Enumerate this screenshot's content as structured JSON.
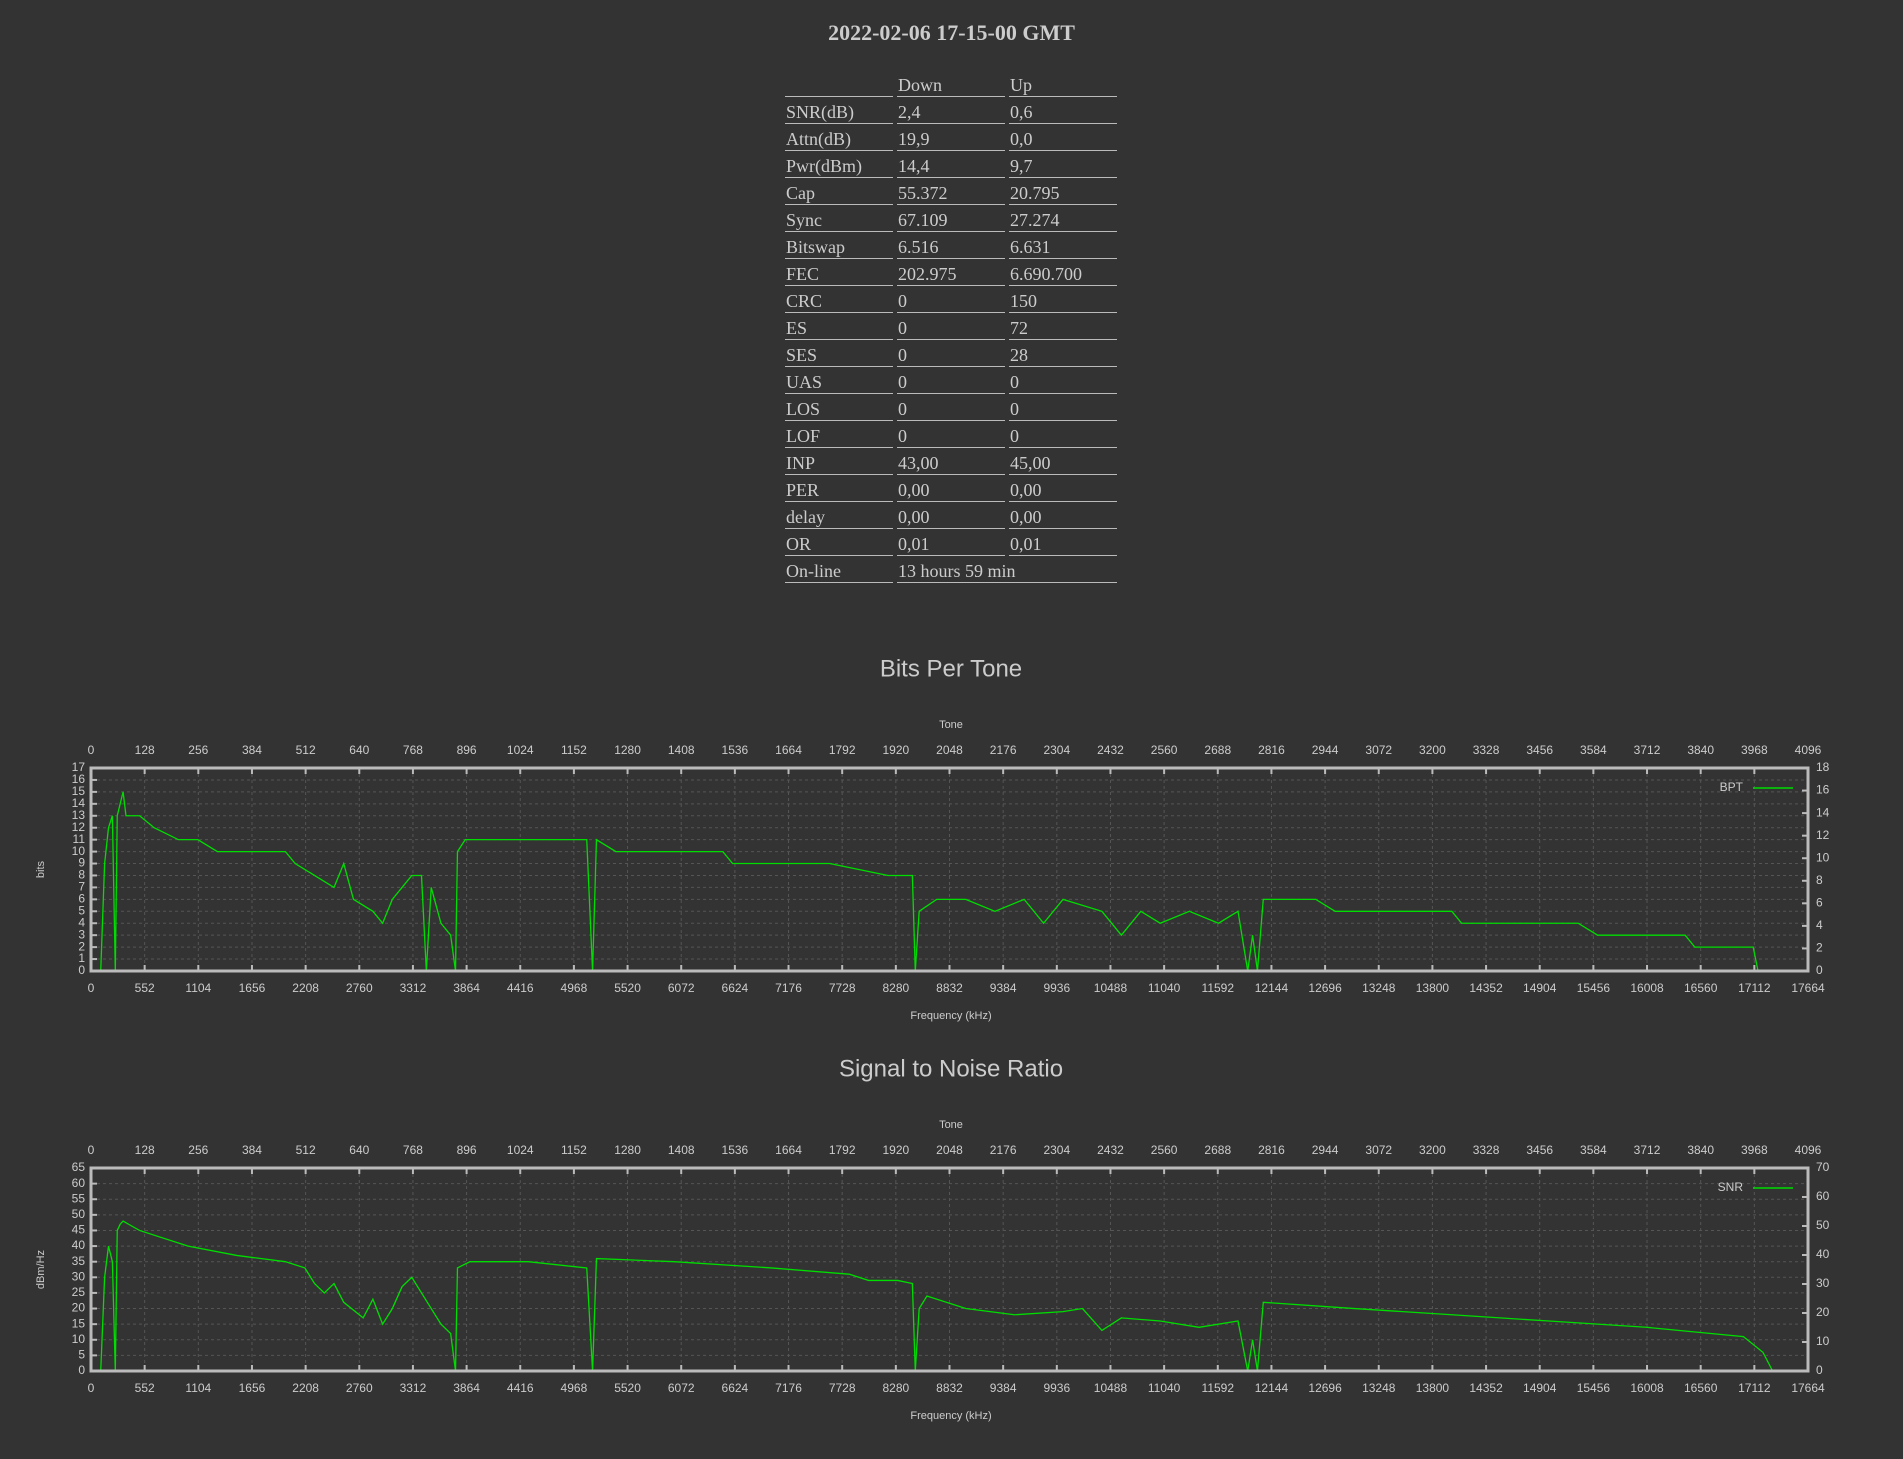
{
  "header": {
    "title": "2022-02-06 17-15-00 GMT"
  },
  "table": {
    "columns": [
      "Down",
      "Up"
    ],
    "rows": [
      [
        "SNR(dB)",
        "2,4",
        "0,6"
      ],
      [
        "Attn(dB)",
        "19,9",
        "0,0"
      ],
      [
        "Pwr(dBm)",
        "14,4",
        "9,7"
      ],
      [
        "Cap",
        "55.372",
        "20.795"
      ],
      [
        "Sync",
        "67.109",
        "27.274"
      ],
      [
        "Bitswap",
        "6.516",
        "6.631"
      ],
      [
        "FEC",
        "202.975",
        "6.690.700"
      ],
      [
        "CRC",
        "0",
        "150"
      ],
      [
        "ES",
        "0",
        "72"
      ],
      [
        "SES",
        "0",
        "28"
      ],
      [
        "UAS",
        "0",
        "0"
      ],
      [
        "LOS",
        "0",
        "0"
      ],
      [
        "LOF",
        "0",
        "0"
      ],
      [
        "INP",
        "43,00",
        "45,00"
      ],
      [
        "PER",
        "0,00",
        "0,00"
      ],
      [
        "delay",
        "0,00",
        "0,00"
      ],
      [
        "OR",
        "0,01",
        "0,01"
      ],
      [
        "On-line",
        "13 hours 59 min"
      ]
    ]
  },
  "chart_data": [
    {
      "type": "line",
      "title": "Bits Per Tone",
      "x_label": "Frequency (kHz)",
      "x2_label": "Tone",
      "y_label": "bits",
      "x": [
        100,
        140,
        180,
        220,
        250,
        270,
        300,
        330,
        360,
        500,
        650,
        900,
        1100,
        1300,
        2000,
        2100,
        2300,
        2500,
        2600,
        2700,
        2900,
        3000,
        3100,
        3200,
        3300,
        3400,
        3450,
        3500,
        3600,
        3700,
        3750,
        3770,
        3850,
        5100,
        5160,
        5200,
        5400,
        6500,
        6600,
        7000,
        7600,
        8200,
        8450,
        8480,
        8520,
        8700,
        9000,
        9300,
        9600,
        9800,
        10000,
        10400,
        10600,
        10800,
        11000,
        11300,
        11600,
        11800,
        11900,
        11950,
        12000,
        12060,
        12600,
        12800,
        14000,
        14100,
        15300,
        15500,
        16400,
        16500,
        17100,
        17150
      ],
      "series": [
        {
          "name": "BPT",
          "color": "#00dd00",
          "values": [
            0,
            9,
            12,
            13,
            0,
            13,
            14,
            15,
            13,
            13,
            12,
            11,
            11,
            10,
            10,
            9,
            8,
            7,
            9,
            6,
            5,
            4,
            6,
            7,
            8,
            8,
            0,
            7,
            4,
            3,
            0,
            10,
            11,
            11,
            0,
            11,
            10,
            10,
            9,
            9,
            9,
            8,
            8,
            0,
            5,
            6,
            6,
            5,
            6,
            4,
            6,
            5,
            3,
            5,
            4,
            5,
            4,
            5,
            0,
            3,
            0,
            6,
            6,
            5,
            5,
            4,
            4,
            3,
            3,
            2,
            2,
            0
          ]
        }
      ],
      "xlim": [
        0,
        17664
      ],
      "xticks": [
        0,
        552,
        1104,
        1656,
        2208,
        2760,
        3312,
        3864,
        4416,
        4968,
        5520,
        6072,
        6624,
        7176,
        7728,
        8280,
        8832,
        9384,
        9936,
        10488,
        11040,
        11592,
        12144,
        12696,
        13248,
        13800,
        14352,
        14904,
        15456,
        16008,
        16560,
        17112,
        17664
      ],
      "x2lim": [
        0,
        4096
      ],
      "x2ticks": [
        0,
        128,
        256,
        384,
        512,
        640,
        768,
        896,
        1024,
        1152,
        1280,
        1408,
        1536,
        1664,
        1792,
        1920,
        2048,
        2176,
        2304,
        2432,
        2560,
        2688,
        2816,
        2944,
        3072,
        3200,
        3328,
        3456,
        3584,
        3712,
        3840,
        3968,
        4096
      ],
      "ylim": [
        0,
        17
      ],
      "yticks": [
        0,
        1,
        2,
        3,
        4,
        5,
        6,
        7,
        8,
        9,
        10,
        11,
        12,
        13,
        14,
        15,
        16,
        17
      ],
      "y2lim": [
        0,
        18
      ],
      "y2ticks": [
        0,
        2,
        4,
        6,
        8,
        10,
        12,
        14,
        16,
        18
      ],
      "grid": true,
      "legend": "upper right"
    },
    {
      "type": "line",
      "title": "Signal to Noise Ratio",
      "x_label": "Frequency (kHz)",
      "x2_label": "Tone",
      "y_label": "dBm/Hz",
      "x": [
        100,
        140,
        180,
        220,
        250,
        270,
        300,
        330,
        500,
        1000,
        1500,
        2000,
        2200,
        2300,
        2400,
        2500,
        2600,
        2800,
        2900,
        3000,
        3100,
        3200,
        3300,
        3400,
        3500,
        3600,
        3700,
        3750,
        3770,
        3900,
        4500,
        5100,
        5160,
        5200,
        6000,
        7000,
        7800,
        8000,
        8300,
        8450,
        8480,
        8520,
        8600,
        9000,
        9500,
        10000,
        10200,
        10400,
        10600,
        11000,
        11400,
        11800,
        11900,
        11950,
        12000,
        12060,
        13000,
        14000,
        15000,
        16000,
        17000,
        17200,
        17300
      ],
      "series": [
        {
          "name": "SNR",
          "color": "#00dd00",
          "values": [
            0,
            30,
            40,
            35,
            0,
            45,
            47,
            48,
            45,
            40,
            37,
            35,
            33,
            28,
            25,
            28,
            22,
            17,
            23,
            15,
            20,
            27,
            30,
            25,
            20,
            15,
            12,
            0,
            33,
            35,
            35,
            33,
            0,
            36,
            35,
            33,
            31,
            29,
            29,
            28,
            0,
            20,
            24,
            20,
            18,
            19,
            20,
            13,
            17,
            16,
            14,
            16,
            0,
            10,
            0,
            22,
            20,
            18,
            16,
            14,
            11,
            6,
            0
          ]
        }
      ],
      "xlim": [
        0,
        17664
      ],
      "xticks": [
        0,
        552,
        1104,
        1656,
        2208,
        2760,
        3312,
        3864,
        4416,
        4968,
        5520,
        6072,
        6624,
        7176,
        7728,
        8280,
        8832,
        9384,
        9936,
        10488,
        11040,
        11592,
        12144,
        12696,
        13248,
        13800,
        14352,
        14904,
        15456,
        16008,
        16560,
        17112,
        17664
      ],
      "x2lim": [
        0,
        4096
      ],
      "x2ticks": [
        0,
        128,
        256,
        384,
        512,
        640,
        768,
        896,
        1024,
        1152,
        1280,
        1408,
        1536,
        1664,
        1792,
        1920,
        2048,
        2176,
        2304,
        2432,
        2560,
        2688,
        2816,
        2944,
        3072,
        3200,
        3328,
        3456,
        3584,
        3712,
        3840,
        3968,
        4096
      ],
      "ylim": [
        0,
        65
      ],
      "yticks": [
        0,
        5,
        10,
        15,
        20,
        25,
        30,
        35,
        40,
        45,
        50,
        55,
        60,
        65
      ],
      "y2lim": [
        0,
        70
      ],
      "y2ticks": [
        0,
        10,
        20,
        30,
        40,
        50,
        60,
        70
      ],
      "grid": true,
      "legend": "upper right"
    }
  ]
}
